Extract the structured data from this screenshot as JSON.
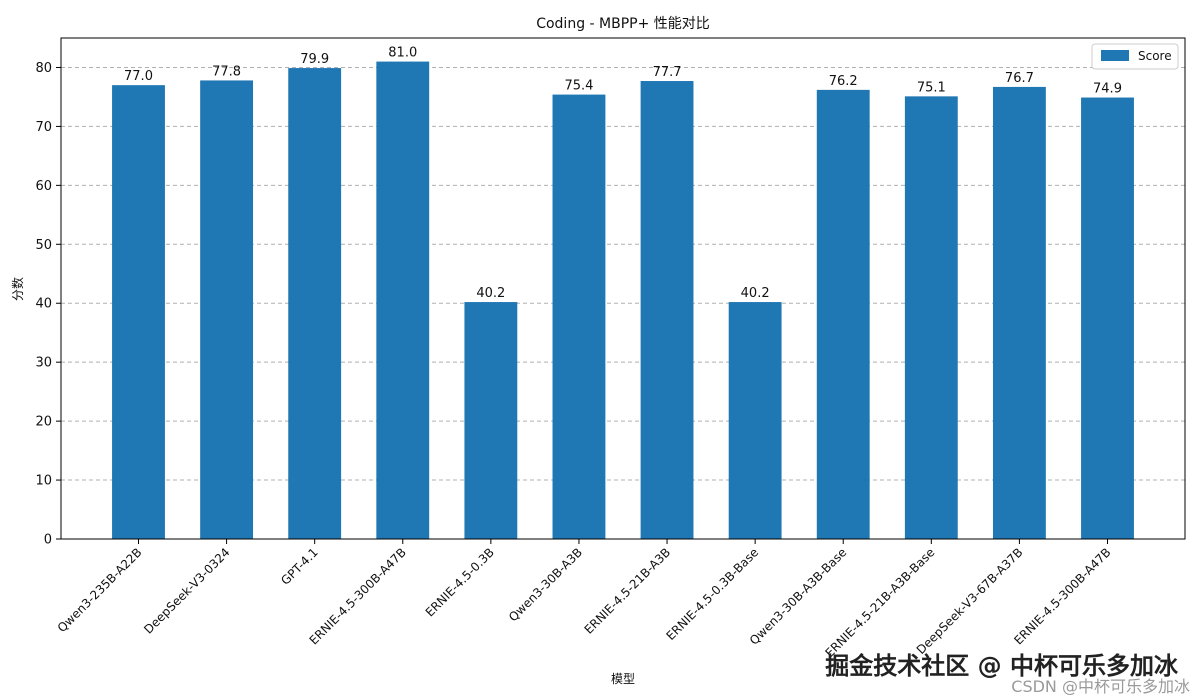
{
  "chart_data": {
    "type": "bar",
    "title": "Coding - MBPP+ 性能对比",
    "xlabel": "模型",
    "ylabel": "分数",
    "categories": [
      "Qwen3-235B-A22B",
      "DeepSeek-V3-0324",
      "GPT-4.1",
      "ERNIE-4.5-300B-A47B",
      "ERNIE-4.5-0.3B",
      "Qwen3-30B-A3B",
      "ERNIE-4.5-21B-A3B",
      "ERNIE-4.5-0.3B-Base",
      "Qwen3-30B-A3B-Base",
      "ERNIE-4.5-21B-A3B-Base",
      "DeepSeek-V3-67B-A37B",
      "ERNIE-4.5-300B-A47B"
    ],
    "series": [
      {
        "name": "Score",
        "values": [
          77.0,
          77.8,
          79.9,
          81.0,
          40.2,
          75.4,
          77.7,
          40.2,
          76.2,
          75.1,
          76.7,
          74.9
        ],
        "color": "#1f77b4"
      }
    ],
    "value_labels": [
      "77.0",
      "77.8",
      "79.9",
      "81.0",
      "40.2",
      "75.4",
      "77.7",
      "40.2",
      "76.2",
      "75.1",
      "76.7",
      "74.9"
    ],
    "ylim": [
      0,
      85
    ],
    "yticks": [
      0,
      10,
      20,
      30,
      40,
      50,
      60,
      70,
      80
    ],
    "grid": true,
    "legend_position": "top-right"
  },
  "watermark": {
    "line1": "掘金技术社区 @ 中杯可乐多加冰",
    "line2": "CSDN @中杯可乐多加冰"
  }
}
